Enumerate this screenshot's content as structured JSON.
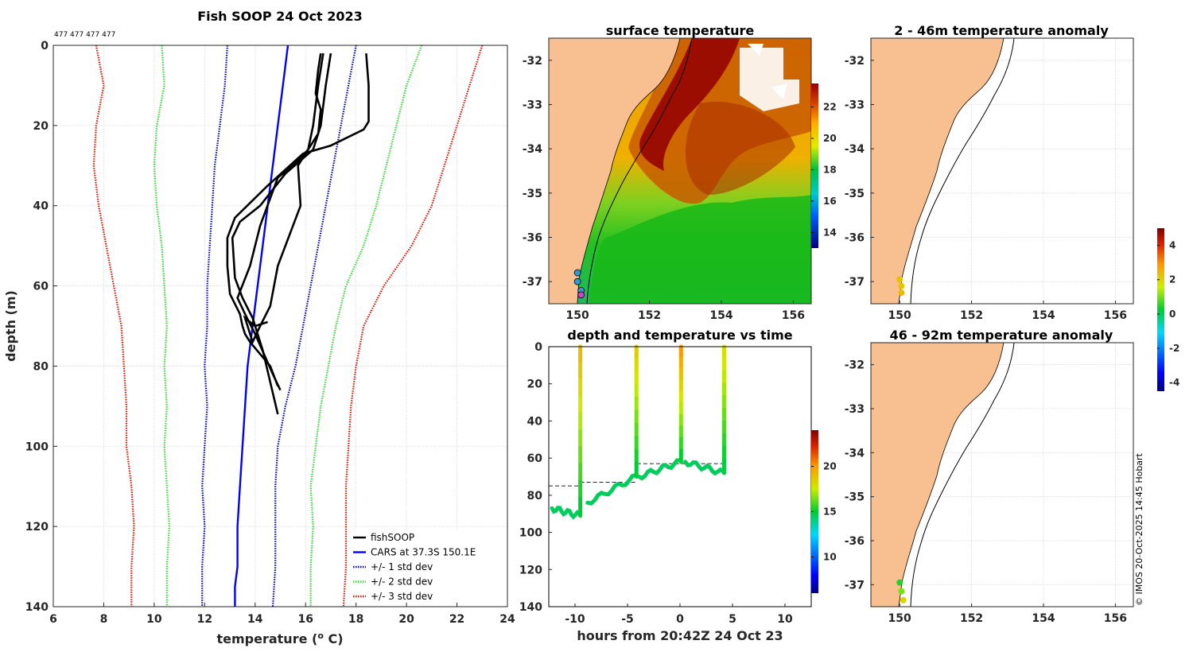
{
  "figure_title": "Fish SOOP 24 Oct 2023",
  "profile_ids": "477 477 477 477",
  "credit": "© IMOS 20-Oct-2025 14:45 Hobart",
  "chart_data": [
    {
      "id": "profile",
      "type": "line",
      "title": "Fish SOOP 24 Oct 2023",
      "xlabel": "temperature (o C)",
      "xlabel_main": "temperature (",
      "xlabel_sup": "o",
      "xlabel_end": " C)",
      "ylabel": "depth (m)",
      "xlim": [
        6,
        24
      ],
      "ylim": [
        0,
        140
      ],
      "xticks": [
        "6",
        "8",
        "10",
        "12",
        "14",
        "16",
        "18",
        "20",
        "22",
        "24"
      ],
      "yticks": [
        "0",
        "20",
        "40",
        "60",
        "80",
        "100",
        "120",
        "140"
      ],
      "legend": [
        {
          "label": "fishSOOP",
          "color": "#000000",
          "style": "solid"
        },
        {
          "label": "CARS at 37.3S 150.1E",
          "color": "#0000ff",
          "style": "solid"
        },
        {
          "label": "+/- 1 std dev",
          "color": "#0000cc",
          "style": "dotted"
        },
        {
          "label": "+/- 2 std dev",
          "color": "#33dd33",
          "style": "dotted"
        },
        {
          "label": "+/- 3 std dev",
          "color": "#ee1100",
          "style": "dotted"
        }
      ],
      "series": [
        {
          "name": "CARS at 37.3S 150.1E",
          "color": "#0000ff",
          "style": "solid",
          "temps": [
            15.3,
            15.1,
            14.9,
            14.7,
            14.5,
            14.3,
            14.1,
            13.9,
            13.7,
            13.6,
            13.5,
            13.4,
            13.3,
            13.3,
            13.2,
            13.2
          ],
          "depths": [
            0,
            10,
            20,
            30,
            40,
            50,
            60,
            70,
            80,
            90,
            100,
            110,
            120,
            130,
            135,
            140
          ]
        },
        {
          "name": "+1 std dev",
          "color": "#0000cc",
          "style": "dotted",
          "temps": [
            18.0,
            17.7,
            17.4,
            17.1,
            16.8,
            16.5,
            16.2,
            15.9,
            15.6,
            15.2,
            14.9,
            14.8,
            14.8,
            14.8,
            14.7
          ],
          "depths": [
            0,
            10,
            20,
            30,
            40,
            50,
            60,
            70,
            80,
            90,
            100,
            110,
            120,
            130,
            140
          ]
        },
        {
          "name": "-1 std dev",
          "color": "#0000cc",
          "style": "dotted",
          "temps": [
            12.9,
            12.8,
            12.6,
            12.4,
            12.3,
            12.2,
            12.1,
            12.1,
            12.0,
            12.1,
            12.0,
            11.9,
            12.0,
            11.9,
            11.9
          ],
          "depths": [
            0,
            10,
            20,
            30,
            40,
            50,
            60,
            70,
            80,
            90,
            100,
            110,
            120,
            130,
            140
          ]
        },
        {
          "name": "+2 std dev",
          "color": "#33dd33",
          "style": "dotted",
          "temps": [
            20.6,
            20.0,
            19.6,
            19.2,
            18.8,
            18.3,
            17.6,
            17.2,
            16.9,
            16.6,
            16.4,
            16.2,
            16.3,
            16.2,
            16.2
          ],
          "depths": [
            0,
            10,
            20,
            30,
            40,
            50,
            60,
            70,
            80,
            90,
            100,
            110,
            120,
            130,
            140
          ]
        },
        {
          "name": "-2 std dev",
          "color": "#33dd33",
          "style": "dotted",
          "temps": [
            10.3,
            10.4,
            10.1,
            10.0,
            10.1,
            10.3,
            10.4,
            10.5,
            10.4,
            10.5,
            10.4,
            10.5,
            10.6,
            10.5,
            10.5
          ],
          "depths": [
            0,
            10,
            20,
            30,
            40,
            50,
            60,
            70,
            80,
            90,
            100,
            110,
            120,
            130,
            140
          ]
        },
        {
          "name": "+3 std dev",
          "color": "#ee1100",
          "style": "dotted",
          "temps": [
            23.0,
            22.5,
            22.0,
            21.5,
            21.0,
            20.2,
            19.1,
            18.3,
            18.0,
            17.8,
            17.7,
            17.6,
            17.6,
            17.6,
            17.5
          ],
          "depths": [
            0,
            10,
            20,
            30,
            40,
            50,
            60,
            70,
            80,
            90,
            100,
            110,
            120,
            130,
            140
          ]
        },
        {
          "name": "-3 std dev",
          "color": "#ee1100",
          "style": "dotted",
          "temps": [
            7.7,
            8.0,
            7.7,
            7.6,
            7.8,
            8.1,
            8.4,
            8.7,
            8.8,
            8.9,
            8.9,
            9.1,
            9.2,
            9.1,
            9.1
          ],
          "depths": [
            0,
            10,
            20,
            30,
            40,
            50,
            60,
            70,
            80,
            90,
            100,
            110,
            120,
            130,
            140
          ]
        },
        {
          "name": "fishSOOP 1",
          "color": "#000000",
          "style": "solid",
          "temps": [
            18.4,
            18.5,
            18.5,
            18.3,
            17.0,
            15.9,
            14.5,
            13.2,
            12.9,
            12.9,
            13.0,
            13.4,
            13.5,
            13.6,
            13.8,
            14.6,
            14.9
          ],
          "depths": [
            2,
            10,
            19,
            21,
            25,
            27,
            35,
            43,
            48,
            55,
            62,
            67,
            70,
            72,
            74,
            80,
            85
          ]
        },
        {
          "name": "fishSOOP 2",
          "color": "#000000",
          "style": "solid",
          "temps": [
            17.0,
            16.8,
            16.6,
            16.3,
            15.2,
            14.2,
            13.4,
            13.1,
            13.2,
            13.5,
            13.9,
            14.3,
            14.9
          ],
          "depths": [
            2,
            10,
            20,
            26,
            32,
            40,
            44,
            48,
            58,
            63,
            68,
            76,
            92
          ]
        },
        {
          "name": "fishSOOP 3",
          "color": "#000000",
          "style": "solid",
          "temps": [
            16.7,
            16.5,
            16.3,
            16.1,
            15.5,
            14.9,
            14.2,
            13.8,
            13.3,
            13.6,
            14.0,
            14.7,
            15.0
          ],
          "depths": [
            2,
            10,
            20,
            26,
            30,
            33,
            45,
            55,
            63,
            67,
            72,
            82,
            86
          ]
        },
        {
          "name": "fishSOOP 4",
          "color": "#000000",
          "style": "solid",
          "temps": [
            16.6,
            16.5,
            16.4,
            16.6,
            16.5,
            15.7,
            15.8,
            14.9,
            14.6,
            14.2,
            13.9,
            13.6,
            14.0,
            14.5
          ],
          "depths": [
            2,
            6,
            12,
            16,
            22,
            30,
            40,
            55,
            65,
            70,
            74,
            68,
            70,
            69
          ]
        }
      ]
    },
    {
      "id": "time-series",
      "type": "scatter",
      "title": "depth and temperature vs time",
      "xlabel": "hours from 20:42Z 24 Oct 23",
      "xlim": [
        -12.5,
        12.5
      ],
      "ylim": [
        0,
        140
      ],
      "xticks": [
        "-10",
        "-5",
        "0",
        "5",
        "10"
      ],
      "xtick_values": [
        -10,
        -5,
        0,
        5,
        10
      ],
      "yticks": [
        "0",
        "20",
        "40",
        "60",
        "80",
        "100",
        "120",
        "140"
      ],
      "colorbar": {
        "min": 6,
        "max": 24,
        "ticks": [
          "10",
          "15",
          "20"
        ],
        "tick_values": [
          10,
          15,
          20
        ]
      },
      "casts": [
        {
          "t_start": -12.2,
          "t_bottom": -9.6,
          "t_surface": -9.4,
          "depth_start": 87,
          "depth_bottom": 91,
          "surface_temp": 19
        },
        {
          "t_start": -8.8,
          "t_bottom": -4.2,
          "t_surface": -4.1,
          "depth_start": 84,
          "depth_bottom": 70,
          "surface_temp": 18.5
        },
        {
          "t_start": -3.9,
          "t_bottom": 0.0,
          "t_surface": 0.2,
          "depth_start": 70,
          "depth_bottom": 62,
          "surface_temp": 20
        },
        {
          "t_start": 0.5,
          "t_bottom": 4.1,
          "t_surface": 4.3,
          "depth_start": 62,
          "depth_bottom": 68,
          "surface_temp": 18
        }
      ],
      "dashed_segments": [
        {
          "t0": -12.5,
          "t1": -9.5,
          "depth": 75
        },
        {
          "t0": -9.5,
          "t1": -4.1,
          "depth": 73
        },
        {
          "t0": -4.1,
          "t1": 0.2,
          "depth": 63
        },
        {
          "t0": 0.2,
          "t1": 4.3,
          "depth": 63
        }
      ]
    },
    {
      "id": "surface-map",
      "type": "heatmap",
      "title": "surface temperature",
      "xlim": [
        149.2,
        156.5
      ],
      "ylim": [
        -37.5,
        -31.5
      ],
      "xticks": [
        "150",
        "152",
        "154",
        "156"
      ],
      "xtick_values": [
        150,
        152,
        154,
        156
      ],
      "yticks": [
        "-32",
        "-33",
        "-34",
        "-35",
        "-36",
        "-37"
      ],
      "ytick_values": [
        -32,
        -33,
        -34,
        -35,
        -36,
        -37
      ],
      "colorbar": {
        "min": 13,
        "max": 23.5,
        "ticks": [
          "14",
          "16",
          "18",
          "20",
          "22"
        ],
        "tick_values": [
          14,
          16,
          18,
          20,
          22
        ]
      },
      "markers": [
        {
          "lon": 150.0,
          "lat": -36.8
        },
        {
          "lon": 150.0,
          "lat": -37.0
        },
        {
          "lon": 150.1,
          "lat": -37.2
        },
        {
          "lon": 150.1,
          "lat": -37.3
        }
      ]
    },
    {
      "id": "anomaly-map-1",
      "type": "scatter",
      "title": "2 - 46m temperature anomaly",
      "xlim": [
        149.2,
        156.5
      ],
      "ylim": [
        -37.5,
        -31.5
      ],
      "xticks": [
        "150",
        "152",
        "154",
        "156"
      ],
      "xtick_values": [
        150,
        152,
        154,
        156
      ],
      "yticks": [
        "-32",
        "-33",
        "-34",
        "-35",
        "-36",
        "-37"
      ],
      "ytick_values": [
        -32,
        -33,
        -34,
        -35,
        -36,
        -37
      ],
      "points": [
        {
          "lon": 150.0,
          "lat": -36.95,
          "anomaly": 2.3
        },
        {
          "lon": 150.05,
          "lat": -37.1,
          "anomaly": 2.2
        },
        {
          "lon": 150.05,
          "lat": -37.25,
          "anomaly": 2.4
        }
      ]
    },
    {
      "id": "anomaly-map-2",
      "type": "scatter",
      "title": "46 - 92m temperature anomaly",
      "xlim": [
        149.2,
        156.5
      ],
      "ylim": [
        -37.5,
        -31.5
      ],
      "xticks": [
        "150",
        "152",
        "154",
        "156"
      ],
      "xtick_values": [
        150,
        152,
        154,
        156
      ],
      "yticks": [
        "-32",
        "-33",
        "-34",
        "-35",
        "-36",
        "-37"
      ],
      "ytick_values": [
        -32,
        -33,
        -34,
        -35,
        -36,
        -37
      ],
      "points": [
        {
          "lon": 150.0,
          "lat": -36.95,
          "anomaly": 0.5
        },
        {
          "lon": 150.05,
          "lat": -37.15,
          "anomaly": 1.0
        },
        {
          "lon": 150.1,
          "lat": -37.35,
          "anomaly": 2.0
        }
      ]
    },
    {
      "id": "anomaly-colorbar",
      "type": "heatmap",
      "colorbar": {
        "min": -4.5,
        "max": 5.0,
        "ticks": [
          "4",
          "2",
          "0",
          "-2",
          "-4"
        ],
        "tick_values": [
          4,
          2,
          0,
          -2,
          -4
        ]
      }
    }
  ]
}
